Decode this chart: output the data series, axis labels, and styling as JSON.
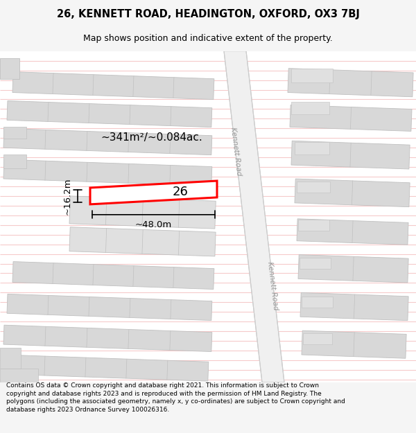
{
  "title_line1": "26, KENNETT ROAD, HEADINGTON, OXFORD, OX3 7BJ",
  "title_line2": "Map shows position and indicative extent of the property.",
  "footer_text": "Contains OS data © Crown copyright and database right 2021. This information is subject to Crown copyright and database rights 2023 and is reproduced with the permission of HM Land Registry. The polygons (including the associated geometry, namely x, y co-ordinates) are subject to Crown copyright and database rights 2023 Ordnance Survey 100026316.",
  "bg_color": "#f5f5f5",
  "map_bg_color": "#ffffff",
  "line_color": "#f0a0a0",
  "road_fill": "#e8e8e8",
  "road_border": "#d0d0d0",
  "building_fill": "#d8d8d8",
  "building_edge": "#c0c0c0",
  "highlight_color": "#ff0000",
  "road_label_color": "#aaaaaa",
  "area_text": "~341m²/~0.084ac.",
  "width_text": "~48.0m",
  "height_text": "~16.2m",
  "number_text": "26",
  "road_name": "Kennett Road"
}
